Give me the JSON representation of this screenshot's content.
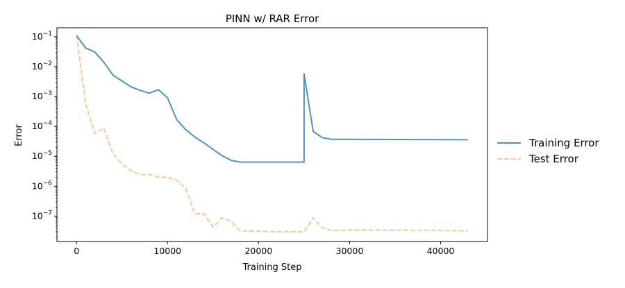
{
  "chart_data": {
    "type": "line",
    "title": "PINN w/ RAR Error",
    "xlabel": "Training Step",
    "ylabel": "Error",
    "yscale": "log",
    "xlim": [
      -2150,
      45150
    ],
    "ylim_exp": [
      -7.85,
      -0.7
    ],
    "xticks": [
      0,
      10000,
      20000,
      30000,
      40000
    ],
    "xtick_labels": [
      "0",
      "10000",
      "20000",
      "30000",
      "40000"
    ],
    "yticks_exp": [
      -1,
      -2,
      -3,
      -4,
      -5,
      -6,
      -7
    ],
    "ytick_labels": [
      {
        "base": "10",
        "exp": "−1"
      },
      {
        "base": "10",
        "exp": "−2"
      },
      {
        "base": "10",
        "exp": "−3"
      },
      {
        "base": "10",
        "exp": "−4"
      },
      {
        "base": "10",
        "exp": "−5"
      },
      {
        "base": "10",
        "exp": "−6"
      },
      {
        "base": "10",
        "exp": "−7"
      }
    ],
    "grid": false,
    "legend_position": "outside-right",
    "series": [
      {
        "name": "Training Error",
        "color": "#1f77b4",
        "style": "solid",
        "x": [
          0,
          1000,
          2000,
          3000,
          4000,
          5000,
          6000,
          7000,
          8000,
          9000,
          10000,
          11000,
          12000,
          13000,
          14000,
          15000,
          16000,
          17000,
          18000,
          19000,
          20000,
          21000,
          22000,
          23000,
          24000,
          24999,
          25000,
          26000,
          27000,
          28000,
          30000,
          35000,
          40000,
          43000
        ],
        "y": [
          0.11,
          0.042,
          0.031,
          0.014,
          0.0052,
          0.0033,
          0.0021,
          0.0016,
          0.0013,
          0.0017,
          0.0009,
          0.00017,
          7.8e-05,
          4.4e-05,
          2.8e-05,
          1.7e-05,
          1.05e-05,
          7.3e-06,
          6.4e-06,
          6.4e-06,
          6.4e-06,
          6.4e-06,
          6.4e-06,
          6.4e-06,
          6.4e-06,
          6.4e-06,
          0.0057,
          6.8e-05,
          4.2e-05,
          3.7e-05,
          3.7e-05,
          3.65e-05,
          3.6e-05,
          3.59e-05
        ]
      },
      {
        "name": "Test Error",
        "color": "#ff7f0e",
        "style": "dashed",
        "x": [
          0,
          1000,
          2000,
          3000,
          4000,
          5000,
          6000,
          7000,
          8000,
          9000,
          10000,
          11000,
          12000,
          13000,
          14000,
          15000,
          16000,
          17000,
          18000,
          20000,
          22000,
          24000,
          25000,
          26000,
          27000,
          28000,
          30000,
          35000,
          40000,
          43000
        ],
        "y": [
          0.11,
          0.0006,
          5.8e-05,
          8.8e-05,
          1.2e-05,
          5.5e-06,
          3.3e-06,
          2.4e-06,
          2.5e-06,
          2e-06,
          2e-06,
          1.6e-06,
          8.5e-07,
          1.2e-07,
          1.2e-07,
          4.3e-08,
          8.8e-08,
          6.5e-08,
          3.2e-08,
          3.1e-08,
          3e-08,
          3e-08,
          3e-08,
          8.8e-08,
          4e-08,
          3.3e-08,
          3.4e-08,
          3.4e-08,
          3.3e-08,
          3.2e-08
        ]
      }
    ]
  }
}
